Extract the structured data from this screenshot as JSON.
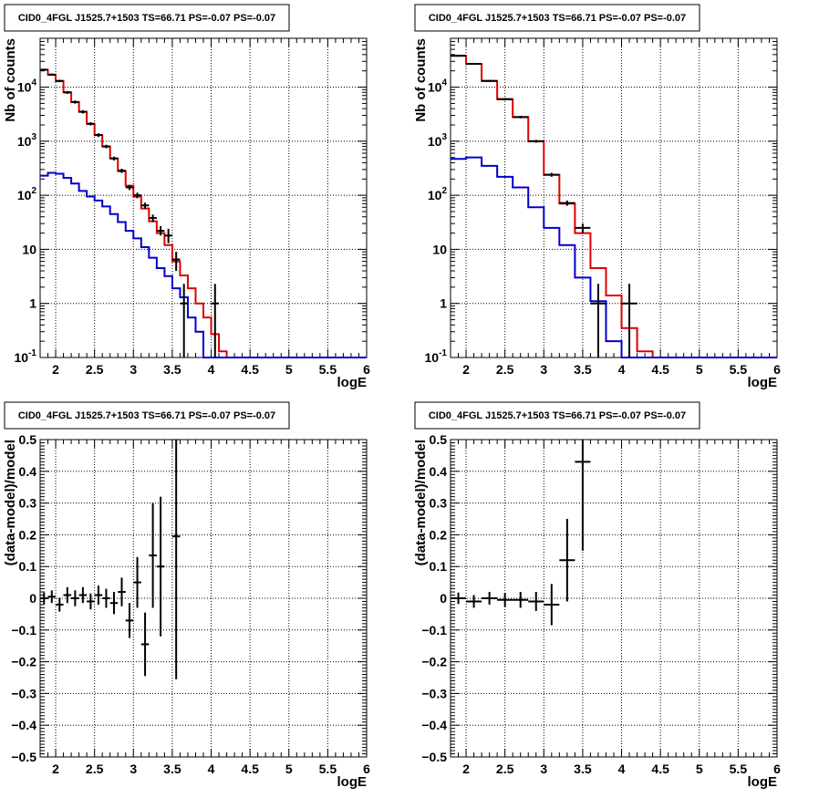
{
  "chart_data": [
    {
      "id": "p1",
      "type": "line",
      "title": "CID0_4FGL J1525.7+1503 TS=66.71 PS=-0.07 PS=-0.07",
      "xlabel": "logE",
      "ylabel": "Nb of counts",
      "xlim": [
        1.8,
        6.0
      ],
      "ylim": [
        0.1,
        80000
      ],
      "ylog": true,
      "grid": true,
      "xticks": [
        "2",
        "2.5",
        "3",
        "3.5",
        "4",
        "4.5",
        "5",
        "5.5",
        "6"
      ],
      "yticks": [
        "10^-1",
        "1",
        "10",
        "10^2",
        "10^3",
        "10^4"
      ],
      "bin_edges": [
        1.8,
        1.9,
        2.0,
        2.1,
        2.2,
        2.3,
        2.4,
        2.5,
        2.6,
        2.7,
        2.8,
        2.9,
        3.0,
        3.1,
        3.2,
        3.3,
        3.4,
        3.5,
        3.6,
        3.7,
        3.8,
        3.9,
        4.0,
        4.1,
        4.2,
        4.3,
        4.4,
        4.5,
        4.6,
        4.7,
        4.8,
        4.9,
        5.0,
        5.1,
        5.2,
        5.3,
        5.4,
        5.5,
        5.6,
        5.7,
        5.8,
        5.9,
        6.0
      ],
      "series": [
        {
          "color": "#dd0000",
          "values": [
            21000,
            17000,
            13000,
            8000,
            5300,
            3500,
            2100,
            1300,
            800,
            480,
            280,
            150,
            95,
            57,
            33,
            20,
            12,
            6,
            3.3,
            1.9,
            1.0,
            0.55,
            0.27,
            0.13,
            0.1,
            0.1,
            0.1,
            0.1,
            0.1,
            0.1,
            0.1,
            0.1,
            0.1,
            0.1,
            0.1,
            0.1,
            0.1,
            0.1,
            0.1,
            0.1,
            0.1,
            0.1
          ]
        },
        {
          "color": "#0000cc",
          "values": [
            230,
            260,
            250,
            210,
            165,
            120,
            95,
            80,
            62,
            45,
            32,
            22,
            16,
            11,
            7,
            4.5,
            3.2,
            1.9,
            1.3,
            0.55,
            0.3,
            0.1,
            0.1,
            0.1,
            0.1,
            0.1,
            0.1,
            0.1,
            0.1,
            0.1,
            0.1,
            0.1,
            0.1,
            0.1,
            0.1,
            0.1,
            0.1,
            0.1,
            0.1,
            0.1,
            0.1,
            0.1
          ]
        }
      ],
      "data_points": [
        {
          "x": 1.85,
          "y": 21000,
          "lo": 20000,
          "hi": 22000
        },
        {
          "x": 1.95,
          "y": 17000,
          "lo": 16200,
          "hi": 17800
        },
        {
          "x": 2.05,
          "y": 13000,
          "lo": 12300,
          "hi": 13700
        },
        {
          "x": 2.15,
          "y": 8000,
          "lo": 7500,
          "hi": 8500
        },
        {
          "x": 2.25,
          "y": 5300,
          "lo": 4950,
          "hi": 5650
        },
        {
          "x": 2.35,
          "y": 3500,
          "lo": 3250,
          "hi": 3750
        },
        {
          "x": 2.45,
          "y": 2100,
          "lo": 1950,
          "hi": 2250
        },
        {
          "x": 2.55,
          "y": 1300,
          "lo": 1200,
          "hi": 1400
        },
        {
          "x": 2.65,
          "y": 800,
          "lo": 740,
          "hi": 860
        },
        {
          "x": 2.75,
          "y": 480,
          "lo": 440,
          "hi": 520
        },
        {
          "x": 2.85,
          "y": 285,
          "lo": 260,
          "hi": 310
        },
        {
          "x": 2.95,
          "y": 140,
          "lo": 125,
          "hi": 155
        },
        {
          "x": 3.05,
          "y": 100,
          "lo": 88,
          "hi": 112
        },
        {
          "x": 3.15,
          "y": 65,
          "lo": 57,
          "hi": 73
        },
        {
          "x": 3.25,
          "y": 38,
          "lo": 32,
          "hi": 44
        },
        {
          "x": 3.35,
          "y": 22,
          "lo": 18,
          "hi": 27
        },
        {
          "x": 3.45,
          "y": 18,
          "lo": 13,
          "hi": 24
        },
        {
          "x": 3.55,
          "y": 6.5,
          "lo": 4,
          "hi": 9
        },
        {
          "x": 3.65,
          "y": 1,
          "lo": 0.1,
          "hi": 2.3
        },
        {
          "x": 4.05,
          "y": 1,
          "lo": 0.1,
          "hi": 2.3
        }
      ]
    },
    {
      "id": "p2",
      "type": "line",
      "title": "CID0_4FGL J1525.7+1503 TS=66.71 PS=-0.07 PS=-0.07",
      "xlabel": "logE",
      "ylabel": "Nb of counts",
      "xlim": [
        1.8,
        6.0
      ],
      "ylim": [
        0.1,
        80000
      ],
      "ylog": true,
      "grid": true,
      "xticks": [
        "2",
        "2.5",
        "3",
        "3.5",
        "4",
        "4.5",
        "5",
        "5.5",
        "6"
      ],
      "yticks": [
        "10^-1",
        "1",
        "10",
        "10^2",
        "10^3",
        "10^4"
      ],
      "bin_edges": [
        1.8,
        2.0,
        2.2,
        2.4,
        2.6,
        2.8,
        3.0,
        3.2,
        3.4,
        3.6,
        3.8,
        4.0,
        4.2,
        4.4,
        4.6,
        4.8,
        5.0,
        5.2,
        5.4,
        5.6,
        5.8,
        6.0
      ],
      "series": [
        {
          "color": "#dd0000",
          "values": [
            38000,
            27000,
            13000,
            6000,
            2800,
            1000,
            240,
            70,
            20,
            4.5,
            1.4,
            0.35,
            0.13,
            0.1,
            0.1,
            0.1,
            0.1,
            0.1,
            0.1,
            0.1,
            0.1
          ]
        },
        {
          "color": "#0000cc",
          "values": [
            470,
            500,
            350,
            220,
            140,
            60,
            25,
            12,
            3,
            1.1,
            0.2,
            0.1,
            0.1,
            0.1,
            0.1,
            0.1,
            0.1,
            0.1,
            0.1,
            0.1,
            0.1
          ]
        }
      ],
      "data_points": [
        {
          "x": 1.9,
          "y": 38000,
          "lo": 36500,
          "hi": 39500
        },
        {
          "x": 2.1,
          "y": 27000,
          "lo": 26000,
          "hi": 28000
        },
        {
          "x": 2.3,
          "y": 13000,
          "lo": 12400,
          "hi": 13600
        },
        {
          "x": 2.5,
          "y": 6000,
          "lo": 5700,
          "hi": 6300
        },
        {
          "x": 2.7,
          "y": 2800,
          "lo": 2650,
          "hi": 2950
        },
        {
          "x": 2.9,
          "y": 1000,
          "lo": 940,
          "hi": 1060
        },
        {
          "x": 3.1,
          "y": 240,
          "lo": 220,
          "hi": 260
        },
        {
          "x": 3.3,
          "y": 72,
          "lo": 64,
          "hi": 80
        },
        {
          "x": 3.5,
          "y": 25,
          "lo": 20,
          "hi": 30
        },
        {
          "x": 3.7,
          "y": 1,
          "lo": 0.1,
          "hi": 2.3
        },
        {
          "x": 4.1,
          "y": 1,
          "lo": 0.1,
          "hi": 2.3
        }
      ]
    },
    {
      "id": "p3",
      "type": "scatter",
      "title": "CID0_4FGL J1525.7+1503 TS=66.71 PS=-0.07 PS=-0.07",
      "xlabel": "logE",
      "ylabel": "(data-model)/model",
      "xlim": [
        1.8,
        6.0
      ],
      "ylim": [
        -0.5,
        0.5
      ],
      "ylog": false,
      "grid": true,
      "xticks": [
        "2",
        "2.5",
        "3",
        "3.5",
        "4",
        "4.5",
        "5",
        "5.5",
        "6"
      ],
      "yticks": [
        "−0.5",
        "−0.4",
        "−0.3",
        "−0.2",
        "−0.1",
        "0",
        "0.1",
        "0.2",
        "0.3",
        "0.4",
        "0.5"
      ],
      "bin_width": 0.1,
      "data_points": [
        {
          "x": 1.85,
          "y": 0.0,
          "err": 0.018
        },
        {
          "x": 1.95,
          "y": 0.005,
          "err": 0.02
        },
        {
          "x": 2.05,
          "y": -0.02,
          "err": 0.022
        },
        {
          "x": 2.15,
          "y": 0.01,
          "err": 0.025
        },
        {
          "x": 2.25,
          "y": 0.0,
          "err": 0.025
        },
        {
          "x": 2.35,
          "y": 0.01,
          "err": 0.025
        },
        {
          "x": 2.45,
          "y": -0.01,
          "err": 0.025
        },
        {
          "x": 2.55,
          "y": 0.01,
          "err": 0.03
        },
        {
          "x": 2.65,
          "y": 0.0,
          "err": 0.03
        },
        {
          "x": 2.75,
          "y": -0.015,
          "err": 0.035
        },
        {
          "x": 2.85,
          "y": 0.02,
          "err": 0.045
        },
        {
          "x": 2.95,
          "y": -0.07,
          "err": 0.055
        },
        {
          "x": 3.05,
          "y": 0.05,
          "err": 0.08
        },
        {
          "x": 3.15,
          "y": -0.145,
          "err": 0.1
        },
        {
          "x": 3.25,
          "y": 0.135,
          "err": 0.165
        },
        {
          "x": 3.35,
          "y": 0.1,
          "err": 0.22
        },
        {
          "x": 3.55,
          "y": 0.195,
          "err": 0.45
        }
      ]
    },
    {
      "id": "p4",
      "type": "scatter",
      "title": "CID0_4FGL J1525.7+1503 TS=66.71 PS=-0.07 PS=-0.07",
      "xlabel": "logE",
      "ylabel": "(data-model)/model",
      "xlim": [
        1.8,
        6.0
      ],
      "ylim": [
        -0.5,
        0.5
      ],
      "ylog": false,
      "grid": true,
      "xticks": [
        "2",
        "2.5",
        "3",
        "3.5",
        "4",
        "4.5",
        "5",
        "5.5",
        "6"
      ],
      "yticks": [
        "−0.5",
        "−0.4",
        "−0.3",
        "−0.2",
        "−0.1",
        "0",
        "0.1",
        "0.2",
        "0.3",
        "0.4",
        "0.5"
      ],
      "bin_width": 0.2,
      "data_points": [
        {
          "x": 1.9,
          "y": 0.0,
          "err": 0.018
        },
        {
          "x": 2.1,
          "y": -0.01,
          "err": 0.02
        },
        {
          "x": 2.3,
          "y": 0.0,
          "err": 0.02
        },
        {
          "x": 2.5,
          "y": -0.005,
          "err": 0.022
        },
        {
          "x": 2.7,
          "y": -0.005,
          "err": 0.025
        },
        {
          "x": 2.9,
          "y": -0.01,
          "err": 0.03
        },
        {
          "x": 3.1,
          "y": -0.02,
          "err": 0.065
        },
        {
          "x": 3.3,
          "y": 0.12,
          "err": 0.13
        },
        {
          "x": 3.5,
          "y": 0.43,
          "err": 0.28
        }
      ]
    }
  ]
}
